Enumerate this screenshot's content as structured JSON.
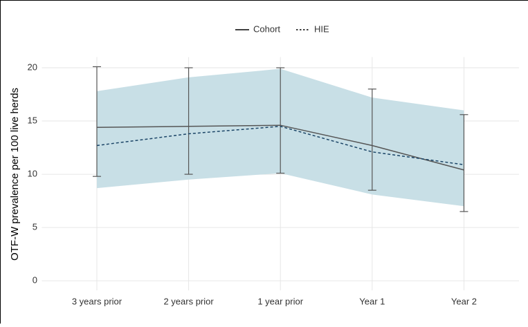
{
  "chart_data": {
    "type": "line",
    "y_label": "OTF-W prevalence per 100 live herds",
    "categories": [
      "3 years prior",
      "2 years prior",
      "1 year prior",
      "Year 1",
      "Year 2"
    ],
    "series": [
      {
        "name": "Cohort",
        "color": "#555555",
        "dash": "solid",
        "values": [
          14.4,
          14.5,
          14.6,
          12.7,
          10.4
        ],
        "error_lower": [
          9.8,
          10.0,
          10.1,
          8.5,
          6.5
        ],
        "error_upper": [
          20.1,
          20.0,
          20.0,
          18.0,
          15.6
        ]
      },
      {
        "name": "HIE",
        "color": "#1a4466",
        "dash": "dotted",
        "values": [
          12.7,
          13.8,
          14.5,
          12.1,
          10.9
        ]
      }
    ],
    "ribbon": {
      "color": "#c8dfe6",
      "lower": [
        8.7,
        9.5,
        10.1,
        8.1,
        7.0
      ],
      "upper": [
        17.8,
        19.1,
        19.9,
        17.2,
        16.0
      ]
    },
    "ylim": [
      -0.9,
      21
    ],
    "yticks": [
      0,
      5,
      10,
      15,
      20
    ],
    "grid": true,
    "legend": "top"
  }
}
